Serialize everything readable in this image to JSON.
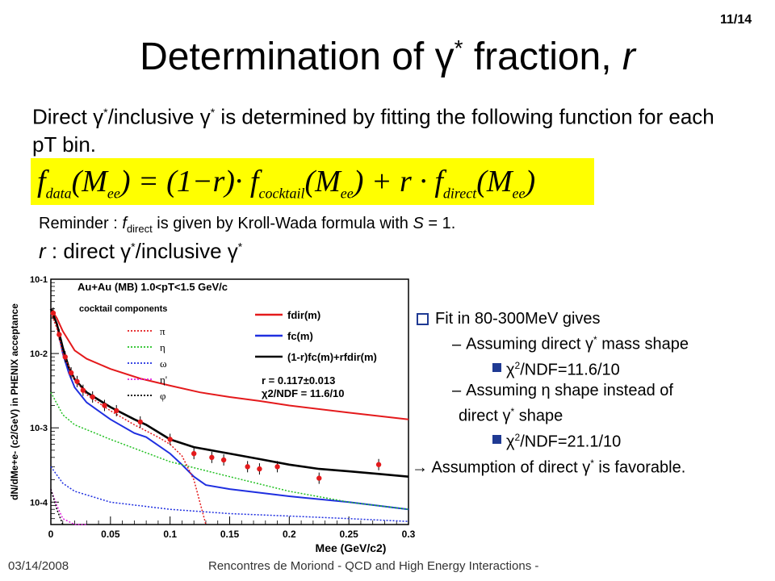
{
  "slide": {
    "number": "11/14",
    "title_prefix": "Determination of ",
    "title_gamma": "γ",
    "title_star": "*",
    "title_suffix": " fraction, ",
    "title_r": "r"
  },
  "intro": {
    "part1": "Direct ",
    "gamma": "γ",
    "star": "*",
    "part2": "/inclusive ",
    "part3": " is determined by fitting the following function for each pT bin."
  },
  "formula": {
    "f": "f",
    "data_sub": "data",
    "mee": "(M",
    "ee": "ee",
    "eq": ") = (1−r)· f",
    "cocktail_sub": "cocktail",
    "plus": ") + r · f",
    "direct_sub": "direct",
    "close": ")"
  },
  "reminder": {
    "prefix": "Reminder : ",
    "f": "f",
    "f_sub": "direct",
    "rest": " is given by Kroll-Wada formula with ",
    "s": "S",
    "tail": " = 1."
  },
  "r_def": {
    "r": "r",
    "text1": " : direct ",
    "gamma": "γ",
    "star": "*",
    "text2": "/inclusive "
  },
  "bullets": {
    "b1": "Fit in 80-300MeV gives",
    "b2a_dash": "–",
    "b2a_pre": "Assuming direct ",
    "b2a_post": " mass shape",
    "b3a_chi": "χ",
    "b3a_two": "2",
    "b3a_val": "/NDF=11.6/10",
    "b2b_dash": "–",
    "b2b_pre": "Assuming ",
    "b2b_eta": "η",
    "b2b_post": " shape instead of",
    "b2b_cont_pre": "direct ",
    "b2b_cont_post": " shape",
    "b3b_chi": "χ",
    "b3b_two": "2",
    "b3b_val": "/NDF=21.1/10",
    "b4_arrow": "→",
    "b4_pre": " Assumption of direct ",
    "b4_post": " is favorable.",
    "gamma": "γ",
    "star": "*"
  },
  "footer": {
    "date": "03/14/2008",
    "conference": "Rencontres de Moriond - QCD and High Energy Interactions -"
  },
  "chart_data": {
    "type": "line",
    "title": "Au+Au (MB) 1.0<pT<1.5 GeV/c",
    "xlabel": "Mee (GeV/c2)",
    "ylabel": "dN/dMe+e- (c2/GeV) in PHENIX acceptance",
    "xlim": [
      0,
      0.3
    ],
    "ylim": [
      5e-05,
      0.1
    ],
    "y_scale": "log",
    "x_ticks": [
      "0",
      "0.05",
      "0.1",
      "0.15",
      "0.2",
      "0.25",
      "0.3"
    ],
    "y_ticks": [
      "10-1",
      "10-2",
      "10-3",
      "10-4"
    ],
    "legend_placement": "top-right",
    "cocktail_legend_title": "cocktail components",
    "fit_text_r": "r = 0.117±0.013",
    "fit_text_chi": "χ2/NDF = 11.6/10",
    "colors": {
      "f_dir": "#e41a1c",
      "f_c": "#1f2fe0",
      "fit": "#000000",
      "pi": "#e41a1c",
      "eta": "#22c022",
      "omega": "#1f2fe0",
      "eta_prime": "#e020e0",
      "phi": "#000000",
      "points": "#e41a1c"
    },
    "series": [
      {
        "name": "fdir(m)",
        "style": "solid",
        "x": [
          0.0,
          0.005,
          0.01,
          0.02,
          0.03,
          0.05,
          0.075,
          0.1,
          0.125,
          0.15,
          0.175,
          0.2,
          0.25,
          0.3
        ],
        "y": [
          0.04,
          0.03,
          0.02,
          0.011,
          0.0085,
          0.0062,
          0.0046,
          0.0037,
          0.003,
          0.0026,
          0.0023,
          0.002,
          0.0016,
          0.0013
        ]
      },
      {
        "name": "fc(m)",
        "style": "solid",
        "x": [
          0.0,
          0.005,
          0.01,
          0.015,
          0.02,
          0.03,
          0.05,
          0.07,
          0.08,
          0.1,
          0.11,
          0.12,
          0.13,
          0.15,
          0.2,
          0.25,
          0.3
        ],
        "y": [
          0.04,
          0.025,
          0.01,
          0.0055,
          0.0035,
          0.0022,
          0.0013,
          0.00085,
          0.00075,
          0.00045,
          0.00032,
          0.00022,
          0.00017,
          0.00015,
          0.00012,
          0.0001,
          8e-05
        ]
      },
      {
        "name": "(1-r)fc(m)+rfdir(m)",
        "style": "solid",
        "x": [
          0.0,
          0.005,
          0.01,
          0.015,
          0.02,
          0.03,
          0.05,
          0.07,
          0.08,
          0.1,
          0.12,
          0.14,
          0.15,
          0.175,
          0.2,
          0.225,
          0.25,
          0.275,
          0.3
        ],
        "y": [
          0.04,
          0.025,
          0.012,
          0.0065,
          0.0045,
          0.003,
          0.0019,
          0.0013,
          0.0011,
          0.0007,
          0.00055,
          0.00048,
          0.00045,
          0.00038,
          0.00032,
          0.00028,
          0.00026,
          0.00024,
          0.00022
        ]
      },
      {
        "name": "π",
        "style": "dotted",
        "x": [
          0.0,
          0.005,
          0.01,
          0.02,
          0.03,
          0.05,
          0.07,
          0.09,
          0.1,
          0.11,
          0.12,
          0.125,
          0.13
        ],
        "y": [
          0.035,
          0.022,
          0.01,
          0.0045,
          0.0028,
          0.0017,
          0.0011,
          0.00075,
          0.0006,
          0.00042,
          0.0002,
          0.0001,
          5e-05
        ]
      },
      {
        "name": "η",
        "style": "dotted",
        "x": [
          0.0,
          0.01,
          0.02,
          0.05,
          0.1,
          0.15,
          0.2,
          0.25,
          0.3
        ],
        "y": [
          0.003,
          0.0015,
          0.0011,
          0.0007,
          0.00035,
          0.00022,
          0.00014,
          0.0001,
          8e-05
        ]
      },
      {
        "name": "ω",
        "style": "dotted",
        "x": [
          0.0,
          0.01,
          0.02,
          0.05,
          0.1,
          0.15,
          0.2,
          0.25,
          0.3
        ],
        "y": [
          0.0003,
          0.00018,
          0.00014,
          0.0001,
          8e-05,
          7e-05,
          6.5e-05,
          6e-05,
          5.5e-05
        ]
      },
      {
        "name": "η'",
        "style": "dotted",
        "x": [
          0.0,
          0.005,
          0.01,
          0.02,
          0.03
        ],
        "y": [
          0.00015,
          9e-05,
          6e-05,
          5e-05,
          5e-05
        ]
      },
      {
        "name": "φ",
        "style": "dotted",
        "x": [
          0.0,
          0.005,
          0.01
        ],
        "y": [
          0.00015,
          8e-05,
          5e-05
        ]
      }
    ],
    "points": {
      "x": [
        0.002,
        0.007,
        0.012,
        0.017,
        0.022,
        0.027,
        0.035,
        0.045,
        0.055,
        0.075,
        0.1,
        0.12,
        0.135,
        0.145,
        0.165,
        0.175,
        0.19,
        0.225,
        0.275
      ],
      "y": [
        0.035,
        0.018,
        0.009,
        0.0055,
        0.0042,
        0.0032,
        0.0026,
        0.002,
        0.0017,
        0.0012,
        0.0007,
        0.00045,
        0.0004,
        0.00037,
        0.0003,
        0.00028,
        0.0003,
        0.00021,
        0.00032
      ]
    }
  }
}
